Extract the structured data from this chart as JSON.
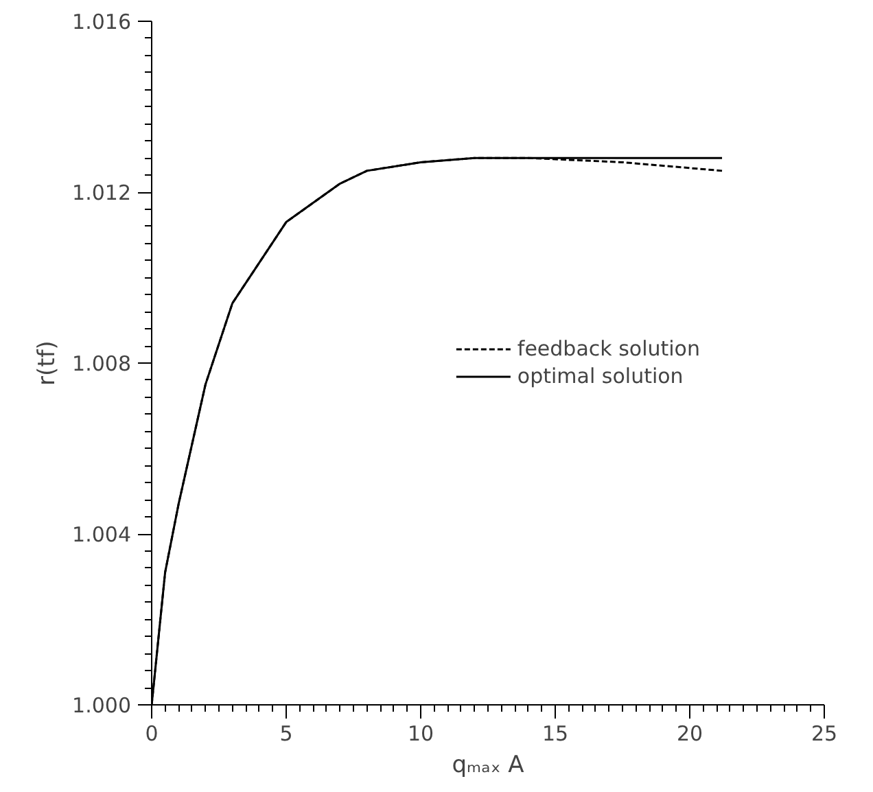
{
  "chart_data": {
    "type": "line",
    "xlabel": "qₘₐₓ A",
    "ylabel": "r(tf)",
    "xlim": [
      0,
      25
    ],
    "xticks": [
      0,
      5,
      10,
      15,
      20,
      25
    ],
    "ylim": [
      1.0,
      1.016
    ],
    "yticks": [
      {
        "value": 1.0,
        "label": "1.000"
      },
      {
        "value": 1.004,
        "label": "1.004"
      },
      {
        "value": 1.008,
        "label": "1.008"
      },
      {
        "value": 1.012,
        "label": "1.012"
      },
      {
        "value": 1.016,
        "label": "1.016"
      }
    ],
    "grid": false,
    "legend": "right",
    "marker": "none",
    "series": [
      {
        "name": "feedback solution",
        "color": "#000000",
        "line_style": "dashed",
        "x": [
          0,
          0.5,
          1,
          2,
          3,
          5,
          7,
          8,
          10,
          12,
          14,
          17.5,
          21.2
        ],
        "values": [
          1.0,
          1.0031,
          1.0047,
          1.0075,
          1.0094,
          1.0113,
          1.0122,
          1.0125,
          1.0127,
          1.0128,
          1.0128,
          1.0127,
          1.0125
        ]
      },
      {
        "name": "optimal solution",
        "color": "#000000",
        "line_style": "solid",
        "x": [
          0,
          0.5,
          1,
          2,
          3,
          5,
          7,
          8,
          10,
          12,
          14,
          17.5,
          21.2
        ],
        "values": [
          1.0,
          1.0031,
          1.0047,
          1.0075,
          1.0094,
          1.0113,
          1.0122,
          1.0125,
          1.0127,
          1.0128,
          1.0128,
          1.0128,
          1.0128
        ]
      }
    ]
  }
}
